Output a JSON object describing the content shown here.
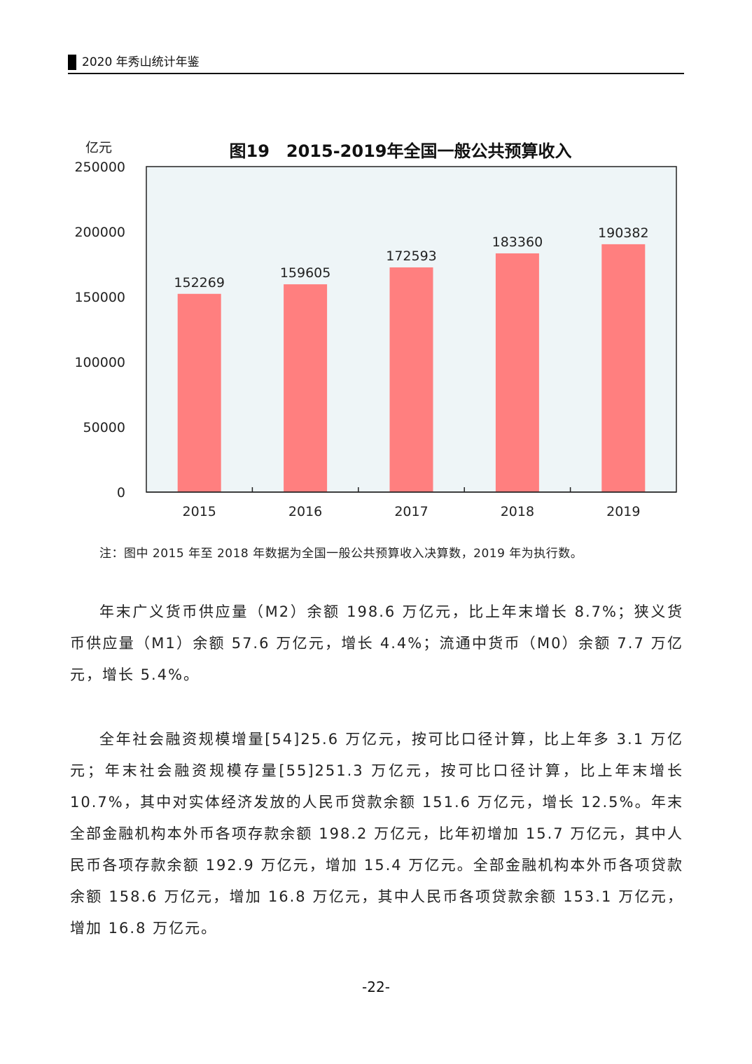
{
  "header": {
    "title": "2020 年秀山统计年鉴"
  },
  "chart": {
    "title": "图19　2015-2019年全国一般公共预算收入",
    "unit": "亿元"
  },
  "chart_data": {
    "type": "bar",
    "title": "图19　2015-2019年全国一般公共预算收入",
    "ylabel": "亿元",
    "categories": [
      "2015",
      "2016",
      "2017",
      "2018",
      "2019"
    ],
    "values": [
      152269,
      159605,
      172593,
      183360,
      190382
    ],
    "ylim": [
      0,
      250000
    ],
    "yticks": [
      0,
      50000,
      100000,
      150000,
      200000,
      250000
    ],
    "bar_color": "#ff7f7f",
    "plot_background": "#eef5f7",
    "grid": false
  },
  "note": "注：图中 2015 年至 2018 年数据为全国一般公共预算收入决算数，2019 年为执行数。",
  "paragraphs": [
    "年末广义货币供应量（M2）余额 198.6 万亿元，比上年末增长 8.7%；狭义货币供应量（M1）余额 57.6 万亿元，增长 4.4%；流通中货币（M0）余额 7.7 万亿元，增长 5.4%。",
    "全年社会融资规模增量[54]25.6 万亿元，按可比口径计算，比上年多 3.1 万亿元；年末社会融资规模存量[55]251.3 万亿元，按可比口径计算，比上年末增长 10.7%，其中对实体经济发放的人民币贷款余额 151.6 万亿元，增长 12.5%。年末全部金融机构本外币各项存款余额 198.2 万亿元，比年初增加 15.7 万亿元，其中人民币各项存款余额 192.9 万亿元，增加 15.4 万亿元。全部金融机构本外币各项贷款余额 158.6 万亿元，增加 16.8 万亿元，其中人民币各项贷款余额 153.1 万亿元，增加 16.8 万亿元。"
  ],
  "page_number": "-22-"
}
